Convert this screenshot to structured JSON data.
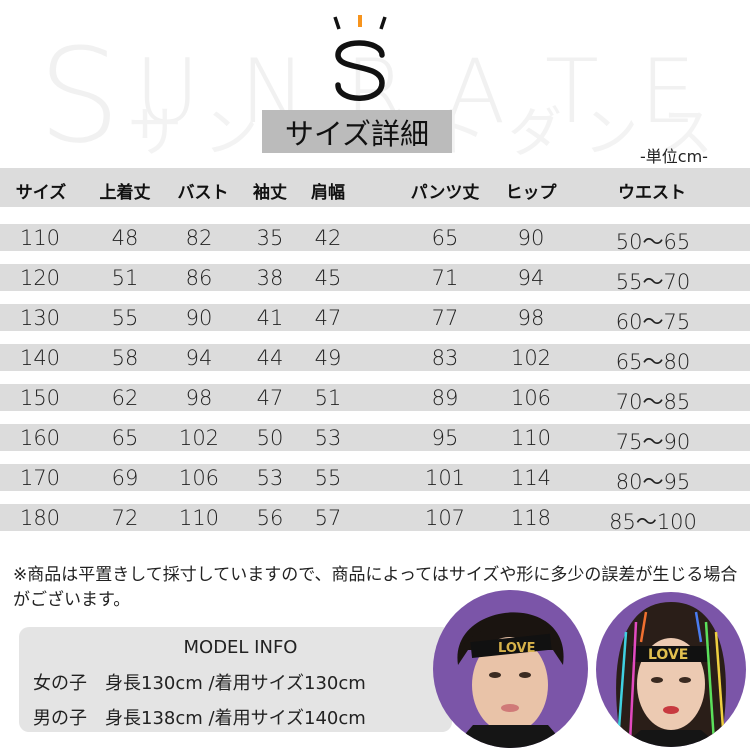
{
  "watermark": {
    "brand_letters": [
      "S",
      "U",
      "N",
      "R",
      "A",
      "T",
      "E"
    ],
    "kana": "サンレイトダンス"
  },
  "logo": {
    "letter": "S",
    "accent_color": "#f7941d"
  },
  "title": "サイズ詳細",
  "unit": "-単位cm-",
  "table": {
    "headers": [
      "サイズ",
      "上着丈",
      "バスト",
      "袖丈",
      "肩幅",
      "パンツ丈",
      "ヒップ",
      "ウエスト"
    ],
    "rows": [
      [
        "110",
        "48",
        "82",
        "35",
        "42",
        "65",
        "90",
        "50～65"
      ],
      [
        "120",
        "51",
        "86",
        "38",
        "45",
        "71",
        "94",
        "55～70"
      ],
      [
        "130",
        "55",
        "90",
        "41",
        "47",
        "77",
        "98",
        "60～75"
      ],
      [
        "140",
        "58",
        "94",
        "44",
        "49",
        "83",
        "102",
        "65～80"
      ],
      [
        "150",
        "62",
        "98",
        "47",
        "51",
        "89",
        "106",
        "70～85"
      ],
      [
        "160",
        "65",
        "102",
        "50",
        "53",
        "95",
        "110",
        "75～90"
      ],
      [
        "170",
        "69",
        "106",
        "53",
        "55",
        "101",
        "114",
        "80～95"
      ],
      [
        "180",
        "72",
        "110",
        "56",
        "57",
        "107",
        "118",
        "85～100"
      ]
    ]
  },
  "note": "※商品は平置きして採寸していますので、商品によってはサイズや形に多少の誤差が生じる場合がございます。",
  "model_info": {
    "title": "MODEL  INFO",
    "girl": "女の子　身長130cm /着用サイズ130cm",
    "boy": "男の子　身長138cm /着用サイズ140cm"
  },
  "photos": {
    "headband_text": "LOVE",
    "background_color": "#7b55a8"
  }
}
